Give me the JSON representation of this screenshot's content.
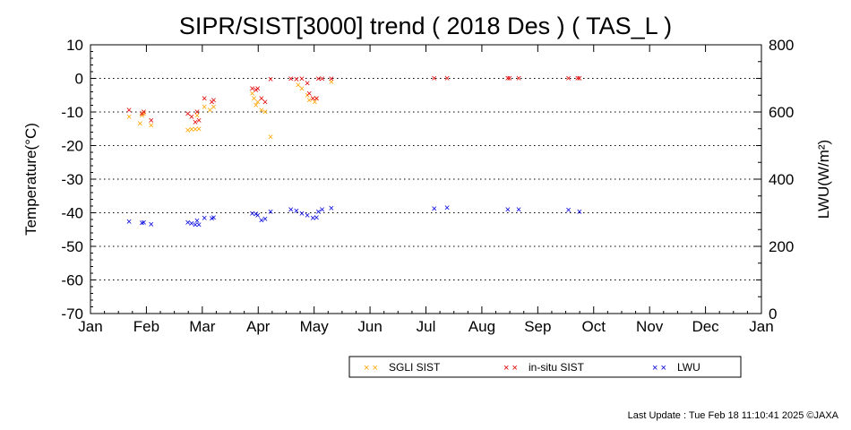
{
  "footer": "Last Update : Tue Feb 18 11:10:41 2025  ©JAXA",
  "chart_data": {
    "type": "scatter",
    "title": "SIPR/SIST[3000] trend ( 2018 Des ) ( TAS_L )",
    "xlabel": "",
    "ylabel": "Temperature(°C)",
    "y2label": "LWU(W/m²)",
    "x_tick_labels": [
      "Jan",
      "Feb",
      "Mar",
      "Apr",
      "May",
      "Jun",
      "Jul",
      "Aug",
      "Sep",
      "Oct",
      "Nov",
      "Dec",
      "Jan"
    ],
    "xlim": [
      "2018-01-01",
      "2019-01-01"
    ],
    "ylim": [
      -70,
      10
    ],
    "y_ticks": [
      10,
      0,
      -10,
      -20,
      -30,
      -40,
      -50,
      -60,
      -70
    ],
    "y2lim": [
      0,
      800
    ],
    "y2_ticks": [
      800,
      600,
      400,
      200,
      0
    ],
    "grid": "horizontal dotted",
    "legend_position": "bottom",
    "marker": "×",
    "series": [
      {
        "name": "SGLI SIST",
        "axis": "left",
        "color": "#ffa500",
        "points": [
          [
            "2018-01-22",
            -11.5
          ],
          [
            "2018-01-28",
            -13.5
          ],
          [
            "2018-01-29",
            -11
          ],
          [
            "2018-01-30",
            -10.5
          ],
          [
            "2018-02-03",
            -14
          ],
          [
            "2018-02-23",
            -15.5
          ],
          [
            "2018-02-25",
            -15.2
          ],
          [
            "2018-02-27",
            -15.2
          ],
          [
            "2018-02-28",
            -11
          ],
          [
            "2018-03-01",
            -15
          ],
          [
            "2018-03-04",
            -8.5
          ],
          [
            "2018-03-07",
            -9.5
          ],
          [
            "2018-03-09",
            -8.5
          ],
          [
            "2018-03-30",
            -4.5
          ],
          [
            "2018-03-31",
            -6
          ],
          [
            "2018-04-01",
            -8
          ],
          [
            "2018-04-02",
            -7
          ],
          [
            "2018-04-04",
            -9.5
          ],
          [
            "2018-04-06",
            -10
          ],
          [
            "2018-04-09",
            -17.5
          ],
          [
            "2018-04-24",
            -2
          ],
          [
            "2018-04-26",
            -3
          ],
          [
            "2018-04-29",
            -5
          ],
          [
            "2018-04-30",
            -6.5
          ],
          [
            "2018-05-03",
            -7
          ],
          [
            "2018-05-04",
            -6
          ],
          [
            "2018-05-12",
            -1
          ]
        ]
      },
      {
        "name": "in-situ SIST",
        "axis": "left",
        "color": "#e00000",
        "points": [
          [
            "2018-01-22",
            -9.5
          ],
          [
            "2018-01-29",
            -10.5
          ],
          [
            "2018-01-30",
            -10
          ],
          [
            "2018-02-03",
            -12.5
          ],
          [
            "2018-02-23",
            -10.5
          ],
          [
            "2018-02-25",
            -11.5
          ],
          [
            "2018-02-27",
            -13
          ],
          [
            "2018-02-28",
            -10
          ],
          [
            "2018-03-01",
            -12.5
          ],
          [
            "2018-03-04",
            -6
          ],
          [
            "2018-03-08",
            -7
          ],
          [
            "2018-03-09",
            -6.5
          ],
          [
            "2018-03-30",
            -3
          ],
          [
            "2018-04-01",
            -3.5
          ],
          [
            "2018-04-02",
            -3
          ],
          [
            "2018-04-04",
            -6
          ],
          [
            "2018-04-06",
            -7
          ],
          [
            "2018-04-09",
            -0.2
          ],
          [
            "2018-04-20",
            -0.1
          ],
          [
            "2018-04-23",
            -0.2
          ],
          [
            "2018-04-26",
            -0.1
          ],
          [
            "2018-04-29",
            -1.5
          ],
          [
            "2018-04-30",
            -4.5
          ],
          [
            "2018-05-02",
            -6
          ],
          [
            "2018-05-04",
            -6
          ],
          [
            "2018-05-05",
            -0.1
          ],
          [
            "2018-05-07",
            -0.1
          ],
          [
            "2018-05-12",
            -0.1
          ],
          [
            "2018-07-07",
            0
          ],
          [
            "2018-07-14",
            0
          ],
          [
            "2018-08-16",
            0
          ],
          [
            "2018-08-17",
            0
          ],
          [
            "2018-08-22",
            0
          ],
          [
            "2018-09-18",
            0
          ],
          [
            "2018-09-23",
            0
          ],
          [
            "2018-09-24",
            0
          ]
        ]
      },
      {
        "name": "LWU",
        "axis": "right",
        "color": "#0000dd",
        "points": [
          [
            "2018-01-22",
            273
          ],
          [
            "2018-01-29",
            269
          ],
          [
            "2018-01-30",
            271
          ],
          [
            "2018-02-03",
            265
          ],
          [
            "2018-02-23",
            271
          ],
          [
            "2018-02-25",
            268
          ],
          [
            "2018-02-27",
            264
          ],
          [
            "2018-02-28",
            276
          ],
          [
            "2018-03-01",
            264
          ],
          [
            "2018-03-04",
            284
          ],
          [
            "2018-03-08",
            283
          ],
          [
            "2018-03-09",
            285
          ],
          [
            "2018-03-30",
            297
          ],
          [
            "2018-04-01",
            296
          ],
          [
            "2018-04-02",
            292
          ],
          [
            "2018-04-04",
            278
          ],
          [
            "2018-04-06",
            282
          ],
          [
            "2018-04-09",
            303
          ],
          [
            "2018-04-20",
            310
          ],
          [
            "2018-04-23",
            306
          ],
          [
            "2018-04-26",
            298
          ],
          [
            "2018-04-29",
            292
          ],
          [
            "2018-05-02",
            284
          ],
          [
            "2018-05-04",
            285
          ],
          [
            "2018-05-05",
            303
          ],
          [
            "2018-05-07",
            309
          ],
          [
            "2018-05-12",
            313
          ],
          [
            "2018-07-07",
            312
          ],
          [
            "2018-07-14",
            315
          ],
          [
            "2018-08-16",
            310
          ],
          [
            "2018-08-22",
            310
          ],
          [
            "2018-09-18",
            308
          ],
          [
            "2018-09-24",
            303
          ]
        ]
      }
    ]
  }
}
